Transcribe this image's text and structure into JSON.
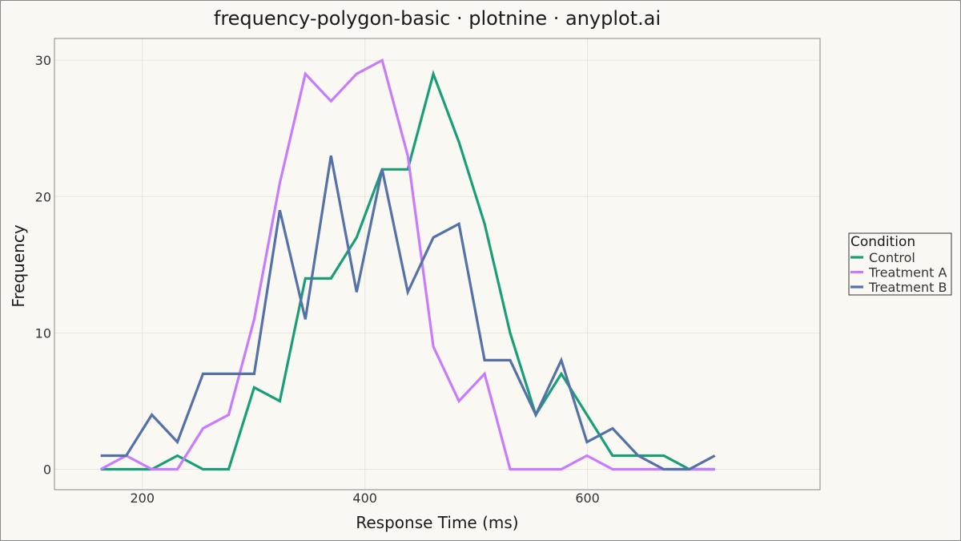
{
  "chart_data": {
    "type": "line",
    "title": "frequency-polygon-basic · plotnine · anyplot.ai",
    "xlabel": "Response Time (ms)",
    "ylabel": "Frequency",
    "xlim": [
      121,
      809
    ],
    "ylim": [
      -1.5,
      31.6
    ],
    "x_ticks": [
      200,
      400,
      600
    ],
    "y_ticks": [
      0,
      10,
      20,
      30
    ],
    "grid": true,
    "legend_title": "Condition",
    "legend_position": "right",
    "x": [
      162.5,
      185.5,
      208.5,
      231.5,
      254.5,
      277.5,
      300.5,
      323.5,
      346.5,
      369.5,
      392.5,
      415.5,
      438.5,
      461.5,
      484.5,
      507.5,
      530.5,
      553.5,
      576.5,
      599.5,
      622.5,
      645.5,
      668.5,
      691.5,
      714.5
    ],
    "series": [
      {
        "name": "Control",
        "color": "#1a9e77",
        "values": [
          0,
          0,
          0,
          1,
          0,
          0,
          6,
          5,
          14,
          14,
          17,
          22,
          22,
          29,
          24,
          18,
          10,
          4,
          7,
          4,
          1,
          1,
          1,
          0,
          0
        ]
      },
      {
        "name": "Treatment A",
        "color": "#c77cff",
        "values": [
          0,
          1,
          0,
          0,
          3,
          4,
          11,
          21,
          29,
          27,
          29,
          30,
          23,
          9,
          5,
          7,
          0,
          0,
          0,
          1,
          0,
          0,
          0,
          0,
          0
        ]
      },
      {
        "name": "Treatment B",
        "color": "#5471a8",
        "values": [
          1,
          1,
          4,
          2,
          7,
          7,
          7,
          19,
          11,
          23,
          13,
          22,
          13,
          17,
          18,
          8,
          8,
          4,
          8,
          2,
          3,
          1,
          0,
          0,
          1
        ]
      }
    ]
  },
  "colors": {
    "background": "#faf8f2",
    "grid": "#e8e5dc",
    "panel_border": "#888888"
  }
}
